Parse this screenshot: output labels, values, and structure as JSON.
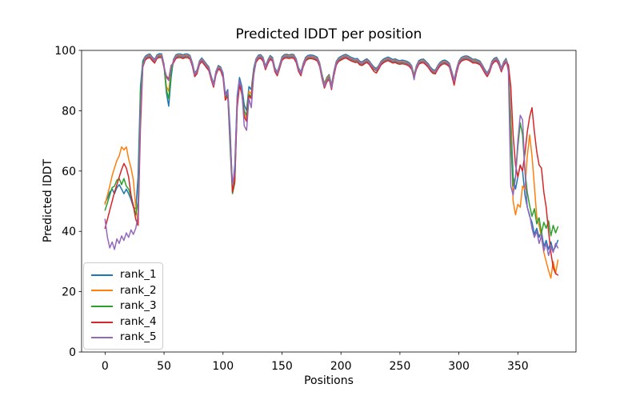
{
  "chart_data": {
    "type": "line",
    "title": "Predicted lDDT per position",
    "xlabel": "Positions",
    "ylabel": "Predicted lDDT",
    "xlim": [
      -19.9,
      399.3
    ],
    "ylim": [
      0,
      100
    ],
    "xticks": [
      0,
      50,
      100,
      150,
      200,
      250,
      300,
      350
    ],
    "yticks": [
      0,
      20,
      40,
      60,
      80,
      100
    ],
    "grid": false,
    "legend_position": "lower left",
    "x_start": 0,
    "x_step": 2,
    "series": [
      {
        "name": "rank_1",
        "color": "#1f77b4",
        "values": [
          49.5,
          51,
          53,
          54,
          52.5,
          54.5,
          55.5,
          54,
          52.5,
          54,
          52.5,
          50.5,
          48,
          47.5,
          58,
          88,
          96.5,
          98,
          98.6,
          98.8,
          97.8,
          97,
          98.5,
          98.9,
          98.8,
          95.5,
          86,
          81.5,
          91,
          97,
          98.5,
          98.8,
          98.8,
          98.5,
          98.8,
          98.8,
          98.3,
          96,
          92.5,
          93.5,
          96.5,
          97.5,
          96.5,
          95.5,
          94.5,
          91.5,
          89,
          93,
          95,
          94.5,
          92.5,
          85.5,
          87,
          74,
          53.5,
          62,
          85,
          91,
          88,
          82,
          80,
          88,
          87,
          94,
          97.2,
          98.4,
          98.6,
          97.6,
          94.8,
          96.8,
          98.3,
          97.6,
          94.2,
          92.8,
          95.2,
          97.9,
          98.6,
          98.7,
          98.5,
          98.7,
          98.6,
          97.2,
          94.3,
          92.8,
          95.7,
          97.7,
          98.3,
          98.5,
          98.4,
          98.1,
          97.7,
          95.8,
          92,
          89,
          91,
          92,
          88.5,
          93,
          96.3,
          97.5,
          98,
          98.4,
          98.7,
          98.3,
          97.8,
          97.5,
          97.2,
          97.3,
          96.4,
          96.2,
          96.8,
          97.2,
          96.5,
          95.4,
          94.5,
          94,
          95,
          96.4,
          97.1,
          97.5,
          97.8,
          97.4,
          97,
          97.2,
          96.8,
          96.6,
          96.8,
          96.6,
          96.4,
          95.9,
          94.9,
          91.8,
          94.9,
          96.6,
          97,
          97.1,
          96.4,
          95.6,
          94.4,
          93.6,
          93.4,
          94.9,
          96,
          96.6,
          96.8,
          96.4,
          95.7,
          93,
          90.2,
          93.9,
          96.5,
          97.6,
          98,
          98.2,
          98,
          97.5,
          97,
          97.1,
          96.8,
          96.4,
          95.1,
          93.7,
          92.5,
          93.9,
          96.4,
          97.4,
          97.7,
          96.4,
          94.1,
          96.2,
          97.3,
          94.8,
          78,
          58,
          54,
          58,
          62,
          60,
          52,
          48,
          45,
          43,
          39,
          41,
          38,
          40,
          35,
          37,
          34,
          36.5,
          33.5,
          35,
          37
        ]
      },
      {
        "name": "rank_2",
        "color": "#ff7f0e",
        "values": [
          49,
          52,
          55,
          58.5,
          61,
          63.5,
          65,
          68,
          67,
          68,
          64,
          61,
          57,
          48,
          43,
          82,
          95.5,
          97.6,
          98.2,
          98.4,
          97.4,
          96.6,
          98.1,
          98.5,
          98.4,
          95.1,
          88,
          86.5,
          93.5,
          96.6,
          98.1,
          98.4,
          98.4,
          98.1,
          98.4,
          98.4,
          97.9,
          95.6,
          92.1,
          93.1,
          96.1,
          97.1,
          96.1,
          95.1,
          94.1,
          91.1,
          88.6,
          92.6,
          94.6,
          94.1,
          92,
          84,
          86,
          70,
          54.5,
          58,
          83,
          89.5,
          86.5,
          79,
          77.5,
          86.5,
          85.5,
          93,
          96.8,
          98,
          98.2,
          97.2,
          94.4,
          96.4,
          97.9,
          97.2,
          93.8,
          92.4,
          94.8,
          97.5,
          98.2,
          98.3,
          98.1,
          98.3,
          98.2,
          96.8,
          93.9,
          92.4,
          95.3,
          97.3,
          97.9,
          98.1,
          98,
          97.7,
          97.3,
          95.4,
          91.6,
          88.6,
          90.6,
          91.6,
          88.1,
          92.6,
          95.9,
          97.1,
          97.6,
          98,
          98.3,
          97.9,
          97.4,
          97.1,
          96.8,
          96.9,
          96,
          95.8,
          96.4,
          96.8,
          96.1,
          95,
          94.1,
          93.6,
          94.6,
          96,
          96.7,
          97.1,
          97.4,
          97,
          96.6,
          96.8,
          96.4,
          96.2,
          96.4,
          96.2,
          96,
          95.5,
          94.5,
          91.4,
          94.5,
          96.2,
          96.6,
          96.7,
          96,
          95.2,
          94,
          93.2,
          93,
          94.5,
          95.6,
          96.2,
          96.4,
          96,
          95.3,
          92.6,
          89.8,
          93.5,
          96.1,
          97.2,
          97.6,
          97.8,
          97.6,
          97.1,
          96.6,
          96.7,
          96.4,
          96,
          94.7,
          93.3,
          92.1,
          93.5,
          96,
          97,
          97.3,
          96,
          93.7,
          95.8,
          96.9,
          94.4,
          75,
          50,
          45.5,
          49,
          48,
          55,
          54,
          65,
          72,
          65,
          55,
          45,
          42,
          38,
          33,
          30,
          27,
          24.5,
          30,
          26,
          30.5
        ]
      },
      {
        "name": "rank_3",
        "color": "#2ca02c",
        "values": [
          47,
          49.5,
          52,
          54.5,
          55,
          57,
          57.5,
          55.5,
          57.5,
          55,
          54,
          51.5,
          48.5,
          45.5,
          50,
          86,
          96,
          97.2,
          97.8,
          98,
          97,
          96.2,
          97.7,
          98.1,
          98,
          94.7,
          87,
          84,
          92.5,
          96.2,
          97.7,
          98,
          98,
          97.7,
          98,
          98,
          97.5,
          95.2,
          91.7,
          92.7,
          95.7,
          96.7,
          95.7,
          94.7,
          93.7,
          90.7,
          88.2,
          92.2,
          94.2,
          93.7,
          91.5,
          84.5,
          85.5,
          68,
          52.5,
          56,
          82,
          89,
          86,
          80,
          78.5,
          85.5,
          84.5,
          92.5,
          96.4,
          97.6,
          97.8,
          96.8,
          94,
          96,
          97.5,
          96.8,
          93.4,
          92,
          94.4,
          97.1,
          97.8,
          97.9,
          97.7,
          97.9,
          97.8,
          96.4,
          93.5,
          92,
          94.9,
          96.9,
          97.5,
          97.7,
          97.6,
          97.3,
          96.9,
          95,
          91.2,
          88.2,
          90.2,
          91.2,
          87.7,
          92.2,
          95.5,
          96.7,
          97.2,
          97.6,
          97.9,
          97.5,
          97,
          96.7,
          96.4,
          96.5,
          95.6,
          95.4,
          96,
          96.4,
          95.7,
          94.6,
          93.7,
          93.2,
          94.2,
          95.6,
          96.3,
          96.7,
          97,
          96.6,
          96.2,
          96.4,
          96,
          95.8,
          96,
          95.8,
          95.6,
          95.1,
          94.1,
          91,
          94.1,
          95.8,
          96.2,
          96.3,
          95.6,
          94.8,
          93.6,
          92.8,
          92.6,
          94.1,
          95.2,
          95.8,
          96,
          95.6,
          94.9,
          92.2,
          89.4,
          93.1,
          95.7,
          96.8,
          97.2,
          97.4,
          97.2,
          96.7,
          96.2,
          96.3,
          96,
          95.6,
          94.3,
          92.9,
          91.7,
          93.1,
          95.6,
          96.6,
          96.9,
          95.6,
          93.3,
          95.4,
          96.5,
          94,
          70,
          55,
          58,
          68,
          76,
          72,
          60,
          53,
          48.5,
          45,
          47.5,
          42.5,
          44.5,
          39.5,
          43,
          41,
          43.5,
          38.5,
          42,
          39.5,
          41.5
        ]
      },
      {
        "name": "rank_4",
        "color": "#d62728",
        "values": [
          41,
          44,
          47,
          50,
          53,
          55.5,
          58,
          60.5,
          62.5,
          61,
          58,
          52,
          48.5,
          44,
          42,
          75,
          94.5,
          96.8,
          97.4,
          97.6,
          96.6,
          95.8,
          97.3,
          97.7,
          97.6,
          94.3,
          91.5,
          90.5,
          95,
          95.8,
          97.3,
          97.6,
          97.6,
          97.3,
          97.6,
          97.6,
          97.1,
          94.8,
          91.3,
          92.3,
          95.3,
          96.3,
          95.3,
          94.3,
          93.3,
          90.3,
          87.8,
          91.8,
          93.8,
          93.3,
          91,
          83.5,
          85,
          72,
          53,
          57,
          81,
          88.5,
          85.5,
          78,
          76.5,
          85,
          84,
          92,
          96,
          97.2,
          97.4,
          96.4,
          93.6,
          95.6,
          97.1,
          96.4,
          93,
          91.6,
          94,
          96.7,
          97.4,
          97.5,
          97.3,
          97.5,
          97.4,
          96,
          93.1,
          91.6,
          94.5,
          96.5,
          97.1,
          97.3,
          97.2,
          96.9,
          96.5,
          94.6,
          90.5,
          87.5,
          89.5,
          90.5,
          87,
          91.5,
          95.1,
          96.3,
          96.8,
          97.2,
          97.5,
          97.1,
          96.6,
          96.3,
          96,
          96.1,
          95.2,
          95,
          95.6,
          96,
          95.3,
          94.2,
          93,
          92.5,
          93.8,
          95.2,
          95.9,
          96.3,
          96.6,
          96.2,
          95.8,
          96,
          95.6,
          95.4,
          95.6,
          95.4,
          95.2,
          94.7,
          93.7,
          91,
          93.7,
          95.4,
          95.8,
          95.9,
          95.2,
          94.4,
          93.2,
          92.4,
          92.2,
          93.7,
          94.8,
          95.4,
          95.6,
          95.2,
          94.5,
          91.5,
          88.5,
          92.5,
          95.3,
          96.4,
          96.8,
          97,
          96.8,
          96.3,
          95.8,
          95.9,
          95.6,
          95.2,
          93.9,
          92.5,
          91.3,
          92.7,
          95.2,
          96.2,
          96.5,
          95.2,
          92.9,
          95,
          96.1,
          95.2,
          88,
          72,
          62,
          58,
          62,
          60,
          66,
          73,
          78,
          81,
          73,
          66.5,
          62,
          61,
          53,
          48,
          40,
          33,
          28,
          26,
          25.5
        ]
      },
      {
        "name": "rank_5",
        "color": "#9467bd",
        "values": [
          44,
          38,
          34.5,
          36.5,
          34,
          37.5,
          36,
          38.5,
          37,
          39.5,
          38,
          40.5,
          39,
          41,
          45,
          80,
          95,
          97.4,
          98,
          98.2,
          97.2,
          96.4,
          97.9,
          98.3,
          98.2,
          94.9,
          91,
          90,
          94.5,
          96.4,
          97.9,
          98.2,
          98.2,
          97.9,
          98.2,
          98.2,
          97.7,
          95.4,
          91.9,
          92.9,
          95.9,
          96.9,
          95.9,
          94.9,
          93.9,
          90.9,
          88.4,
          92.4,
          94.4,
          93.9,
          92,
          85,
          86.5,
          71,
          55.5,
          60,
          84,
          90,
          87,
          75,
          73.5,
          84,
          81,
          91.5,
          96.6,
          97.8,
          98,
          97,
          94.2,
          96.2,
          97.7,
          97,
          93.6,
          92.2,
          94.6,
          97.3,
          98,
          98.1,
          97.9,
          98.1,
          98,
          96.6,
          93.7,
          92.2,
          95.1,
          97.1,
          97.7,
          97.9,
          97.8,
          97.5,
          97.1,
          95.2,
          91,
          88,
          90,
          91,
          87.5,
          92.4,
          95.7,
          96.9,
          97.4,
          97.8,
          98.1,
          97.7,
          97.2,
          96.9,
          96.6,
          96.7,
          95.8,
          95.6,
          96.2,
          96.6,
          95.9,
          94.8,
          93.9,
          93.4,
          94.4,
          95.8,
          96.5,
          96.9,
          97.2,
          96.8,
          96.4,
          96.6,
          96.2,
          96,
          96.2,
          96,
          95.8,
          95.3,
          94.3,
          90.3,
          94.3,
          96,
          96.4,
          96.5,
          95.8,
          95,
          93.8,
          93,
          92.8,
          94.3,
          95.4,
          96,
          96.2,
          95.8,
          95.1,
          92.4,
          89.6,
          93.3,
          95.9,
          97,
          97.4,
          97.6,
          97.4,
          96.9,
          96.4,
          96.5,
          96.2,
          95.8,
          94.5,
          93.1,
          91.9,
          93.3,
          95.8,
          96.8,
          97.1,
          95.8,
          93.5,
          95.6,
          96.7,
          93,
          55,
          52,
          58,
          70,
          78.5,
          77,
          60,
          48,
          45.5,
          41,
          38,
          40,
          36,
          38.5,
          33.5,
          36,
          32,
          35,
          33,
          36,
          34.5
        ]
      }
    ]
  }
}
